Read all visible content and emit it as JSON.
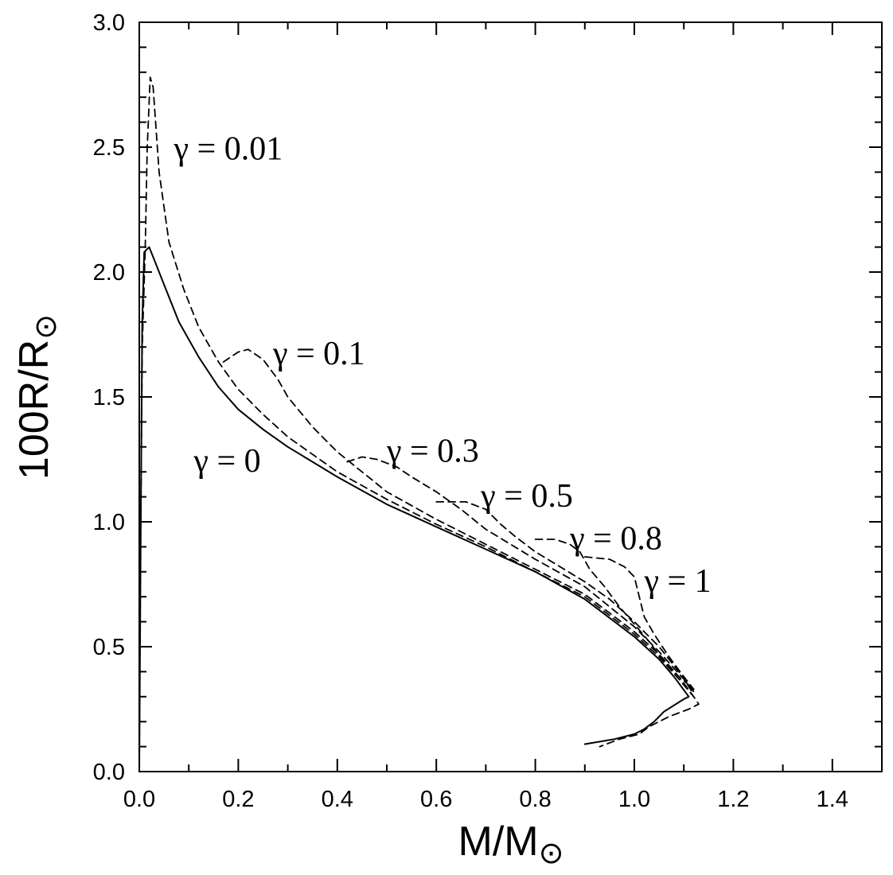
{
  "chart_data": {
    "type": "line",
    "title": "",
    "xlabel": "M/M",
    "xlabel_subscript": "⊙",
    "ylabel": "100R/R",
    "ylabel_subscript": "⊙",
    "xlim": [
      0.0,
      1.5
    ],
    "ylim": [
      0.0,
      3.0
    ],
    "grid": false,
    "x_ticks": [
      "0.0",
      "0.2",
      "0.4",
      "0.6",
      "0.8",
      "1.0",
      "1.2",
      "1.4"
    ],
    "y_ticks": [
      "0.0",
      "0.5",
      "1.0",
      "1.5",
      "2.0",
      "2.5",
      "3.0"
    ],
    "series": [
      {
        "name": "γ = 0",
        "style": "solid",
        "points": [
          [
            0.0,
            0.0
          ],
          [
            0.003,
            1.0
          ],
          [
            0.006,
            1.8
          ],
          [
            0.01,
            2.08
          ],
          [
            0.02,
            2.1
          ],
          [
            0.03,
            2.05
          ],
          [
            0.05,
            1.95
          ],
          [
            0.08,
            1.8
          ],
          [
            0.12,
            1.66
          ],
          [
            0.16,
            1.54
          ],
          [
            0.2,
            1.45
          ],
          [
            0.25,
            1.37
          ],
          [
            0.3,
            1.3
          ],
          [
            0.35,
            1.24
          ],
          [
            0.4,
            1.18
          ],
          [
            0.5,
            1.07
          ],
          [
            0.6,
            0.98
          ],
          [
            0.7,
            0.89
          ],
          [
            0.8,
            0.8
          ],
          [
            0.9,
            0.69
          ],
          [
            1.0,
            0.54
          ],
          [
            1.05,
            0.45
          ],
          [
            1.08,
            0.38
          ],
          [
            1.11,
            0.3
          ],
          [
            1.1,
            0.29
          ],
          [
            1.06,
            0.24
          ],
          [
            1.04,
            0.2
          ],
          [
            1.02,
            0.17
          ],
          [
            1.0,
            0.15
          ],
          [
            0.96,
            0.13
          ],
          [
            0.9,
            0.11
          ]
        ]
      },
      {
        "name": "γ = 0.01",
        "style": "dashed",
        "points": [
          [
            0.003,
            1.0
          ],
          [
            0.006,
            1.7
          ],
          [
            0.012,
            2.1
          ],
          [
            0.016,
            2.5
          ],
          [
            0.022,
            2.78
          ],
          [
            0.028,
            2.74
          ],
          [
            0.04,
            2.4
          ],
          [
            0.06,
            2.12
          ],
          [
            0.09,
            1.93
          ],
          [
            0.12,
            1.78
          ],
          [
            0.16,
            1.64
          ],
          [
            0.2,
            1.53
          ],
          [
            0.25,
            1.43
          ],
          [
            0.3,
            1.34
          ],
          [
            0.35,
            1.27
          ],
          [
            0.4,
            1.2
          ],
          [
            0.5,
            1.09
          ],
          [
            0.6,
            0.99
          ],
          [
            0.7,
            0.9
          ],
          [
            0.8,
            0.8
          ],
          [
            0.9,
            0.7
          ],
          [
            1.0,
            0.55
          ],
          [
            1.05,
            0.46
          ],
          [
            1.09,
            0.37
          ],
          [
            1.12,
            0.3
          ],
          [
            1.13,
            0.27
          ],
          [
            1.11,
            0.25
          ],
          [
            1.07,
            0.22
          ],
          [
            1.03,
            0.18
          ],
          [
            1.01,
            0.15
          ],
          [
            0.97,
            0.13
          ],
          [
            0.93,
            0.1
          ]
        ]
      },
      {
        "name": "γ = 0.1",
        "style": "dashed",
        "points": [
          [
            0.17,
            1.64
          ],
          [
            0.2,
            1.68
          ],
          [
            0.22,
            1.69
          ],
          [
            0.25,
            1.65
          ],
          [
            0.28,
            1.57
          ],
          [
            0.3,
            1.5
          ],
          [
            0.35,
            1.38
          ],
          [
            0.4,
            1.28
          ],
          [
            0.5,
            1.12
          ],
          [
            0.6,
            1.01
          ],
          [
            0.7,
            0.91
          ],
          [
            0.8,
            0.81
          ],
          [
            0.9,
            0.71
          ],
          [
            1.0,
            0.56
          ],
          [
            1.05,
            0.47
          ],
          [
            1.09,
            0.38
          ],
          [
            1.12,
            0.3
          ]
        ]
      },
      {
        "name": "γ = 0.3",
        "style": "dashed",
        "points": [
          [
            0.42,
            1.24
          ],
          [
            0.45,
            1.26
          ],
          [
            0.48,
            1.25
          ],
          [
            0.52,
            1.22
          ],
          [
            0.55,
            1.18
          ],
          [
            0.6,
            1.12
          ],
          [
            0.65,
            1.05
          ],
          [
            0.7,
            0.97
          ],
          [
            0.8,
            0.85
          ],
          [
            0.9,
            0.74
          ],
          [
            1.0,
            0.58
          ],
          [
            1.05,
            0.48
          ],
          [
            1.1,
            0.37
          ],
          [
            1.12,
            0.31
          ]
        ]
      },
      {
        "name": "γ = 0.5",
        "style": "dashed",
        "points": [
          [
            0.6,
            1.08
          ],
          [
            0.66,
            1.08
          ],
          [
            0.7,
            1.05
          ],
          [
            0.73,
            0.99
          ],
          [
            0.76,
            0.94
          ],
          [
            0.8,
            0.88
          ],
          [
            0.85,
            0.82
          ],
          [
            0.9,
            0.76
          ],
          [
            0.95,
            0.69
          ],
          [
            1.0,
            0.6
          ],
          [
            1.05,
            0.5
          ],
          [
            1.09,
            0.4
          ],
          [
            1.12,
            0.32
          ]
        ]
      },
      {
        "name": "γ = 0.8",
        "style": "dashed",
        "points": [
          [
            0.8,
            0.93
          ],
          [
            0.84,
            0.93
          ],
          [
            0.87,
            0.91
          ],
          [
            0.89,
            0.88
          ],
          [
            0.91,
            0.81
          ],
          [
            0.94,
            0.74
          ],
          [
            0.97,
            0.66
          ],
          [
            1.0,
            0.59
          ],
          [
            1.03,
            0.52
          ],
          [
            1.06,
            0.44
          ],
          [
            1.09,
            0.38
          ],
          [
            1.12,
            0.33
          ]
        ]
      },
      {
        "name": "γ = 1",
        "style": "dashed",
        "points": [
          [
            0.9,
            0.86
          ],
          [
            0.95,
            0.85
          ],
          [
            0.98,
            0.82
          ],
          [
            1.0,
            0.78
          ],
          [
            1.01,
            0.7
          ],
          [
            1.02,
            0.62
          ],
          [
            1.04,
            0.55
          ],
          [
            1.07,
            0.46
          ],
          [
            1.1,
            0.38
          ],
          [
            1.12,
            0.33
          ]
        ]
      }
    ],
    "annotations": [
      {
        "text": "γ = 0.01",
        "x": 0.07,
        "y": 2.45
      },
      {
        "text": "γ = 0.1",
        "x": 0.27,
        "y": 1.63
      },
      {
        "text": "γ = 0.3",
        "x": 0.5,
        "y": 1.24
      },
      {
        "text": "γ = 0.5",
        "x": 0.69,
        "y": 1.06
      },
      {
        "text": "γ = 0.8",
        "x": 0.87,
        "y": 0.89
      },
      {
        "text": "γ = 1",
        "x": 1.02,
        "y": 0.72
      },
      {
        "text": "γ = 0",
        "x": 0.11,
        "y": 1.2
      }
    ]
  }
}
